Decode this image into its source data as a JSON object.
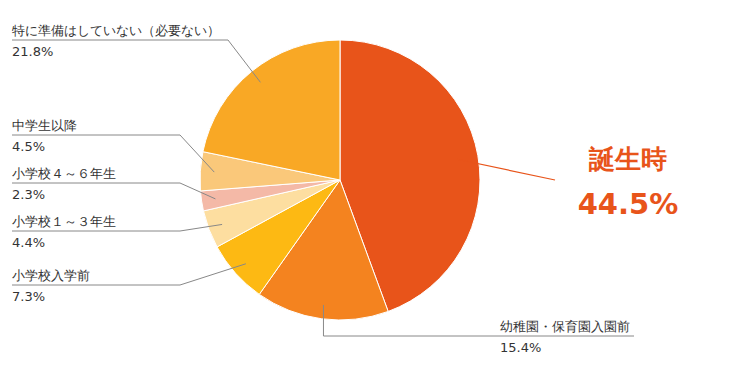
{
  "chart_data": {
    "type": "pie",
    "categories": [
      "誕生時",
      "幼稚園・保育園入園前",
      "小学校入学前",
      "小学校１～３年生",
      "小学校４～６年生",
      "中学生以降",
      "特に準備はしていない（必要ない）"
    ],
    "values": [
      44.5,
      15.4,
      7.3,
      4.4,
      2.3,
      4.5,
      21.8
    ],
    "value_labels": [
      "44.5%",
      "15.4%",
      "7.3%",
      "4.4%",
      "2.3%",
      "4.5%",
      "21.8%"
    ],
    "colors": [
      "#E8541A",
      "#F4831F",
      "#FDB913",
      "#FDDEA0",
      "#F4B9A7",
      "#FAC87A",
      "#F9A825"
    ],
    "data_labels": true
  }
}
